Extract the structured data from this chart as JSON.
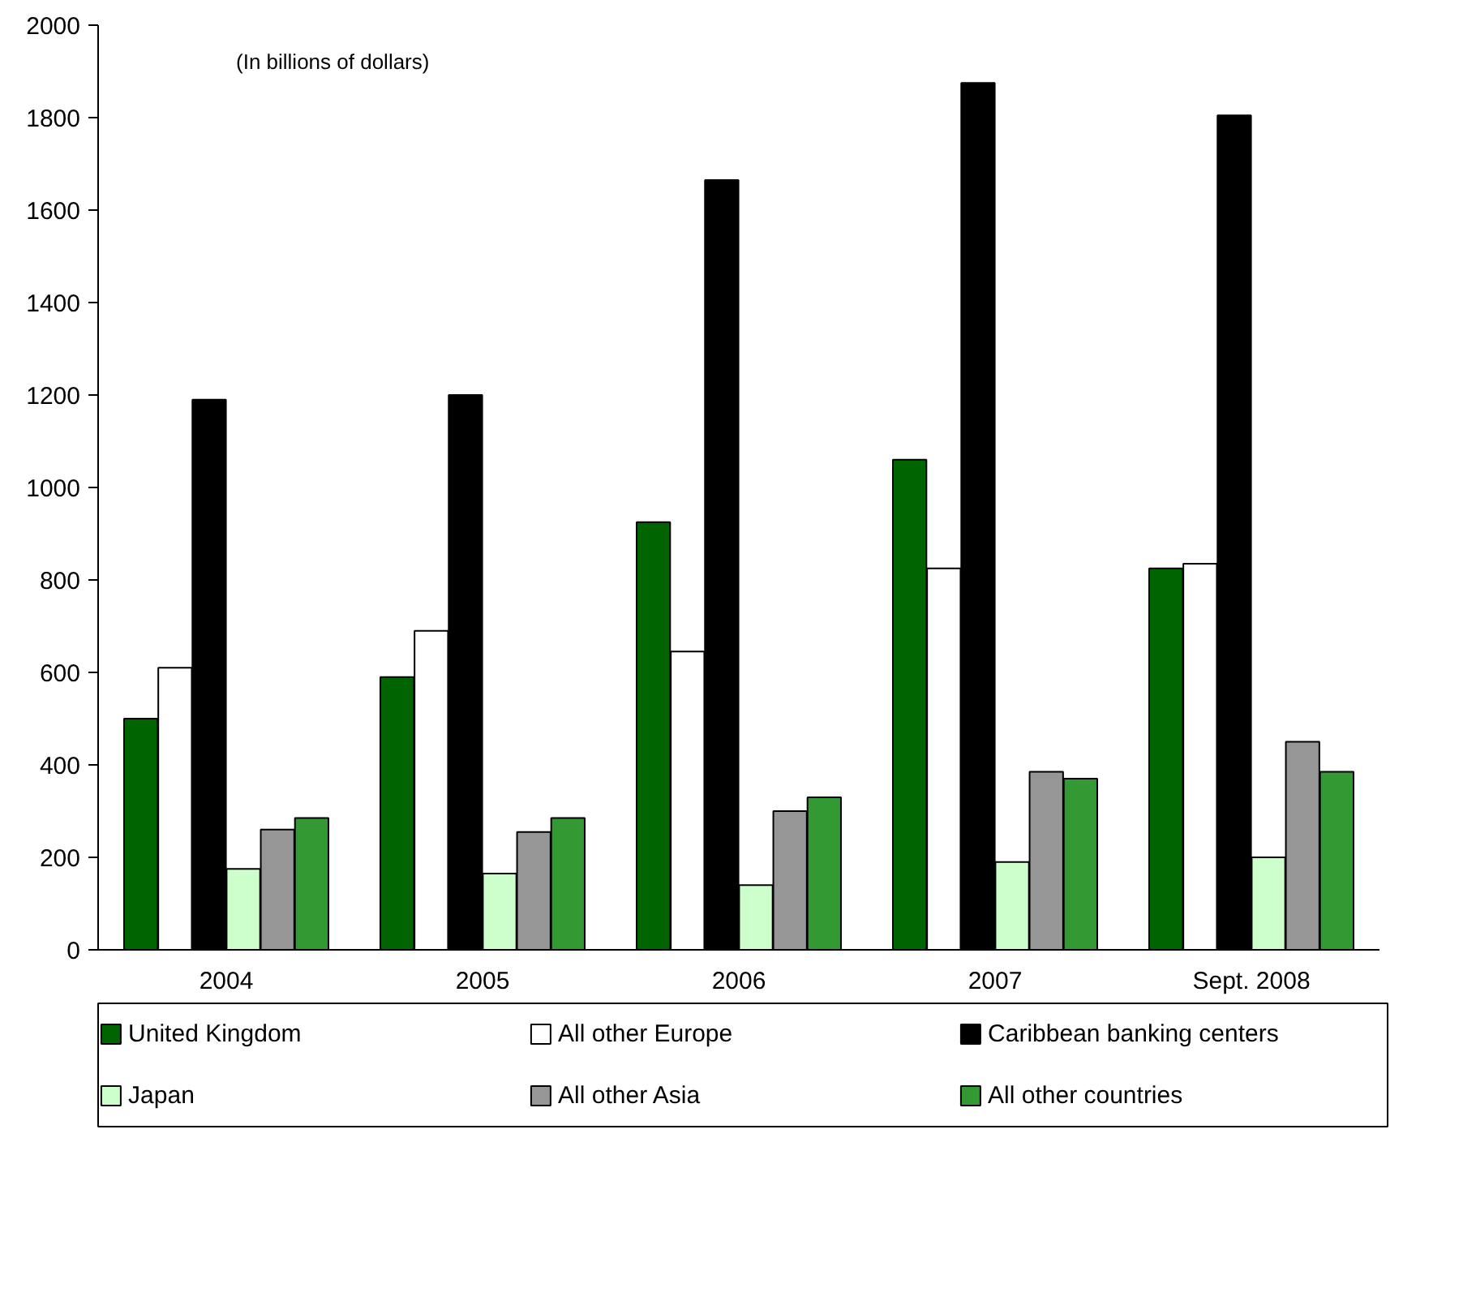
{
  "chart_data": {
    "type": "bar",
    "categories": [
      "2004",
      "2005",
      "2006",
      "2007",
      "Sept. 2008"
    ],
    "series": [
      {
        "name": "United Kingdom",
        "color": "#006400",
        "values": [
          500,
          590,
          925,
          1060,
          825
        ]
      },
      {
        "name": "All other Europe",
        "color": "#ffffff",
        "values": [
          610,
          690,
          645,
          825,
          835
        ]
      },
      {
        "name": "Caribbean banking centers",
        "color": "#000000",
        "values": [
          1190,
          1200,
          1665,
          1875,
          1805
        ]
      },
      {
        "name": "Japan",
        "color": "#ccffcc",
        "values": [
          175,
          165,
          140,
          190,
          200
        ]
      },
      {
        "name": "All other Asia",
        "color": "#969696",
        "values": [
          260,
          255,
          300,
          385,
          450
        ]
      },
      {
        "name": "All other countries",
        "color": "#339933",
        "values": [
          285,
          285,
          330,
          370,
          385
        ]
      }
    ],
    "ylim": [
      0,
      2000
    ],
    "yticks": [
      0,
      200,
      400,
      600,
      800,
      1000,
      1200,
      1400,
      1600,
      1800,
      2000
    ],
    "annotations": [
      "(In billions of dollars)"
    ],
    "grid": false,
    "legend": "bottom"
  }
}
